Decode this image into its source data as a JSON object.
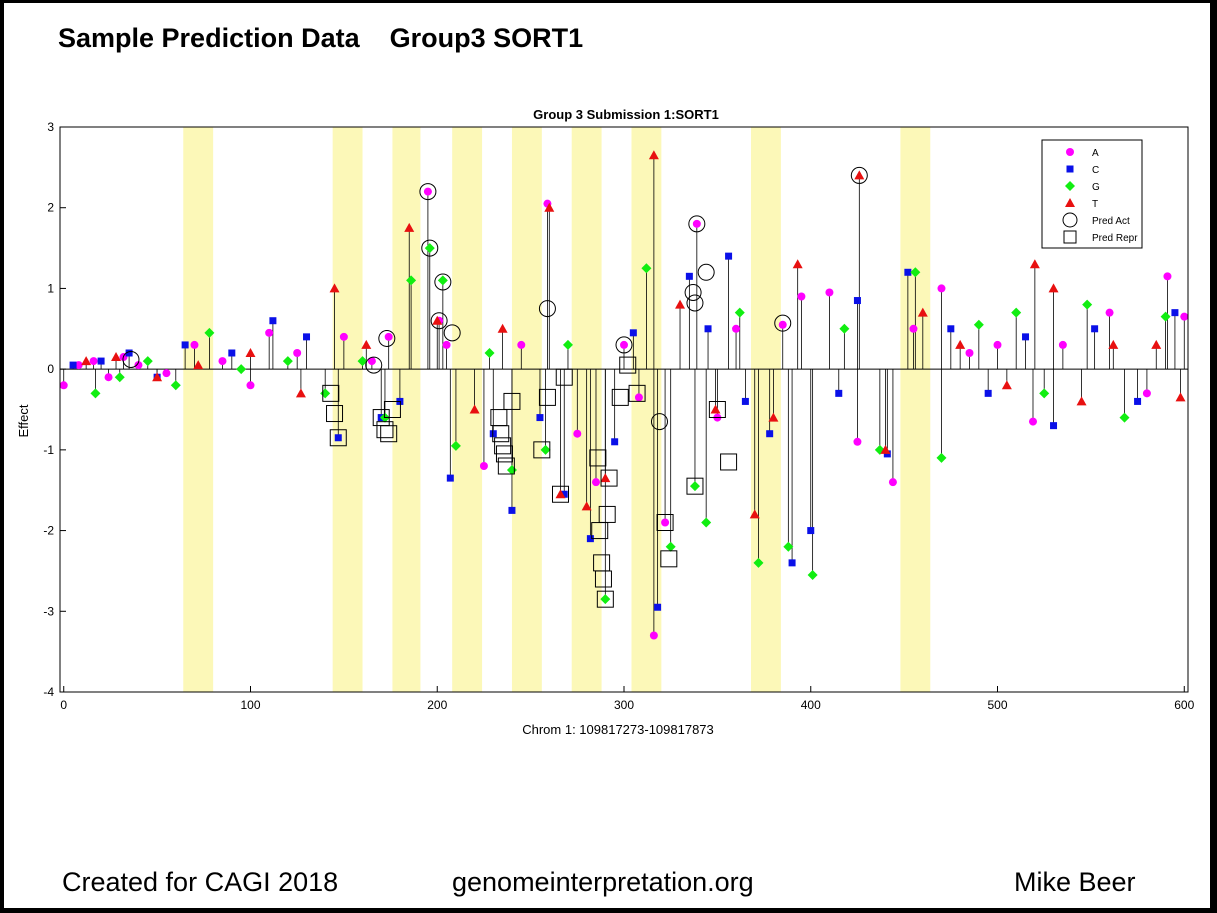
{
  "slide": {
    "title": "Sample Prediction Data    Group3 SORT1",
    "footer_left": "Created for CAGI 2018",
    "footer_center": "genomeinterpretation.org",
    "footer_right": "Mike Beer"
  },
  "chart_data": {
    "type": "scatter",
    "title": "Group 3 Submission 1:SORT1",
    "xlabel": "Chrom 1: 109817273-109817873",
    "ylabel": "Effect",
    "xlim": [
      -2,
      602
    ],
    "ylim": [
      -4,
      3
    ],
    "xticks": [
      "0",
      "100",
      "200",
      "300",
      "400",
      "500",
      "600"
    ],
    "xtick_values": [
      0,
      100,
      200,
      300,
      400,
      500,
      600
    ],
    "yticks": [
      "3",
      "2",
      "1",
      "0",
      "-1",
      "-2",
      "-3",
      "-4"
    ],
    "ytick_values": [
      3,
      2,
      1,
      0,
      -1,
      -2,
      -3,
      -4
    ],
    "grid": false,
    "legend_position": "top-right",
    "highlight_color": "#fcf8b8",
    "highlight_bands": [
      [
        64,
        80
      ],
      [
        144,
        160
      ],
      [
        176,
        191
      ],
      [
        208,
        224
      ],
      [
        240,
        256
      ],
      [
        272,
        288
      ],
      [
        304,
        320
      ],
      [
        368,
        384
      ],
      [
        448,
        464
      ]
    ],
    "series": [
      {
        "name": "A",
        "color": "#ff00ff",
        "marker": "circle",
        "x": [
          0,
          8,
          16,
          24,
          32,
          40,
          55,
          70,
          85,
          100,
          110,
          125,
          150,
          165,
          174,
          195,
          201,
          205,
          225,
          245,
          259,
          275,
          285,
          300,
          308,
          316,
          322,
          339,
          350,
          360,
          385,
          395,
          410,
          425,
          444,
          455,
          470,
          485,
          500,
          519,
          535,
          560,
          580,
          591,
          600
        ],
        "y": [
          -0.2,
          0.05,
          0.1,
          -0.1,
          0.15,
          0.05,
          -0.05,
          0.3,
          0.1,
          -0.2,
          0.45,
          0.2,
          0.4,
          0.1,
          0.4,
          2.2,
          0.6,
          0.3,
          -1.2,
          0.3,
          2.05,
          -0.8,
          -1.4,
          0.3,
          -0.35,
          -3.3,
          -1.9,
          1.8,
          -0.6,
          0.5,
          0.55,
          0.9,
          0.95,
          -0.9,
          -1.4,
          0.5,
          1.0,
          0.2,
          0.3,
          -0.65,
          0.3,
          0.7,
          -0.3,
          1.15,
          0.65
        ]
      },
      {
        "name": "C",
        "color": "#0a10e8",
        "marker": "square",
        "x": [
          5,
          20,
          35,
          50,
          65,
          90,
          112,
          130,
          147,
          170,
          180,
          207,
          230,
          240,
          255,
          268,
          282,
          295,
          305,
          318,
          335,
          345,
          356,
          365,
          378,
          390,
          400,
          415,
          425,
          441,
          452,
          475,
          495,
          515,
          530,
          552,
          575,
          595
        ],
        "y": [
          0.05,
          0.1,
          0.2,
          -0.1,
          0.3,
          0.2,
          0.6,
          0.4,
          -0.85,
          -0.6,
          -0.4,
          -1.35,
          -0.8,
          -1.75,
          -0.6,
          -1.55,
          -2.1,
          -0.9,
          0.45,
          -2.95,
          1.15,
          0.5,
          1.4,
          -0.4,
          -0.8,
          -2.4,
          -2.0,
          -0.3,
          0.85,
          -1.05,
          1.2,
          0.5,
          -0.3,
          0.4,
          -0.7,
          0.5,
          -0.4,
          0.7
        ]
      },
      {
        "name": "G",
        "color": "#11ee11",
        "marker": "diamond",
        "x": [
          17,
          30,
          45,
          60,
          78,
          95,
          120,
          140,
          160,
          172,
          186,
          196,
          203,
          210,
          228,
          240,
          258,
          270,
          290,
          312,
          325,
          338,
          344,
          362,
          372,
          388,
          401,
          418,
          437,
          456,
          470,
          490,
          510,
          525,
          548,
          568,
          590
        ],
        "y": [
          -0.3,
          -0.1,
          0.1,
          -0.2,
          0.45,
          0.0,
          0.1,
          -0.3,
          0.1,
          -0.6,
          1.1,
          1.5,
          1.1,
          -0.95,
          0.2,
          -1.25,
          -1.0,
          0.3,
          -2.85,
          1.25,
          -2.2,
          -1.45,
          -1.9,
          0.7,
          -2.4,
          -2.2,
          -2.55,
          0.5,
          -1.0,
          1.2,
          -1.1,
          0.55,
          0.7,
          -0.3,
          0.8,
          -0.6,
          0.65
        ]
      },
      {
        "name": "T",
        "color": "#e81010",
        "marker": "triangle",
        "x": [
          12,
          28,
          50,
          72,
          100,
          127,
          145,
          162,
          185,
          200,
          220,
          235,
          260,
          266,
          280,
          290,
          316,
          330,
          349,
          370,
          380,
          393,
          426,
          440,
          460,
          480,
          505,
          520,
          530,
          545,
          562,
          585,
          598
        ],
        "y": [
          0.1,
          0.15,
          -0.1,
          0.05,
          0.2,
          -0.3,
          1.0,
          0.3,
          1.75,
          0.6,
          -0.5,
          0.5,
          2.0,
          -1.55,
          -1.7,
          -1.35,
          2.65,
          0.8,
          -0.5,
          -1.8,
          -0.6,
          1.3,
          2.4,
          -1.0,
          0.7,
          0.3,
          -0.2,
          1.3,
          1.0,
          -0.4,
          0.3,
          0.3,
          -0.35
        ]
      }
    ],
    "predicted_activators": {
      "x": [
        36,
        166,
        173,
        195,
        196,
        201,
        203,
        208,
        259,
        300,
        319,
        337,
        338,
        339,
        344,
        385,
        426
      ],
      "y": [
        0.12,
        0.05,
        0.38,
        2.2,
        1.5,
        0.6,
        1.08,
        0.45,
        0.75,
        0.3,
        -0.65,
        0.95,
        0.82,
        1.8,
        1.2,
        0.57,
        2.4
      ]
    },
    "predicted_repressors": {
      "x": [
        143,
        145,
        147,
        170,
        172,
        174,
        176,
        233,
        234,
        235,
        236,
        237,
        240,
        256,
        259,
        266,
        268,
        286,
        287,
        288,
        289,
        290,
        291,
        292,
        298,
        302,
        307,
        322,
        324,
        338,
        350,
        356
      ],
      "y": [
        -0.3,
        -0.55,
        -0.85,
        -0.6,
        -0.75,
        -0.8,
        -0.5,
        -0.6,
        -0.8,
        -0.95,
        -1.05,
        -1.2,
        -0.4,
        -1.0,
        -0.35,
        -1.55,
        -0.1,
        -1.1,
        -2.0,
        -2.4,
        -2.6,
        -2.85,
        -1.8,
        -1.35,
        -0.35,
        0.05,
        -0.3,
        -1.9,
        -2.35,
        -1.45,
        -0.5,
        -1.15
      ]
    },
    "legend": [
      {
        "label": "A",
        "marker": "circle"
      },
      {
        "label": "C",
        "marker": "square"
      },
      {
        "label": "G",
        "marker": "diamond"
      },
      {
        "label": "T",
        "marker": "triangle"
      },
      {
        "label": "Pred Act",
        "marker": "open-circle"
      },
      {
        "label": "Pred Repr",
        "marker": "open-square"
      }
    ]
  }
}
